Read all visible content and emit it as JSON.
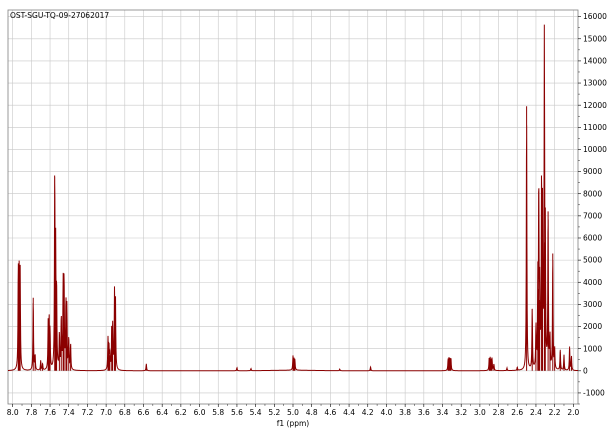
{
  "chart_data": {
    "type": "line",
    "title": "OST-SGU-TQ-09-27062017",
    "xlabel": "f1 (ppm)",
    "ylabel": "",
    "xlim": [
      8.05,
      1.95
    ],
    "ylim": [
      -1500,
      16300
    ],
    "x_reversed": true,
    "grid": true,
    "x_ticks": [
      8.0,
      7.8,
      7.6,
      7.4,
      7.2,
      7.0,
      6.8,
      6.6,
      6.4,
      6.2,
      6.0,
      5.8,
      5.6,
      5.4,
      5.2,
      5.0,
      4.8,
      4.6,
      4.4,
      4.2,
      4.0,
      3.8,
      3.6,
      3.4,
      3.2,
      3.0,
      2.8,
      2.6,
      2.4,
      2.2,
      2.0
    ],
    "y_ticks": [
      -1000,
      0,
      1000,
      2000,
      3000,
      4000,
      5000,
      6000,
      7000,
      8000,
      9000,
      10000,
      11000,
      12000,
      13000,
      14000,
      15000,
      16000
    ],
    "baseline": 0,
    "peaks": [
      {
        "x": 7.94,
        "y": 4450
      },
      {
        "x": 7.93,
        "y": 4200
      },
      {
        "x": 7.92,
        "y": 4250
      },
      {
        "x": 7.78,
        "y": 3300
      },
      {
        "x": 7.76,
        "y": 700
      },
      {
        "x": 7.7,
        "y": 450
      },
      {
        "x": 7.68,
        "y": 300
      },
      {
        "x": 7.62,
        "y": 2050
      },
      {
        "x": 7.61,
        "y": 2200
      },
      {
        "x": 7.6,
        "y": 1700
      },
      {
        "x": 7.55,
        "y": 8750
      },
      {
        "x": 7.54,
        "y": 5100
      },
      {
        "x": 7.53,
        "y": 3500
      },
      {
        "x": 7.5,
        "y": 1600
      },
      {
        "x": 7.48,
        "y": 2400
      },
      {
        "x": 7.46,
        "y": 3850
      },
      {
        "x": 7.45,
        "y": 4050
      },
      {
        "x": 7.43,
        "y": 3000
      },
      {
        "x": 7.42,
        "y": 2700
      },
      {
        "x": 7.4,
        "y": 1450
      },
      {
        "x": 7.38,
        "y": 1200
      },
      {
        "x": 6.98,
        "y": 1400
      },
      {
        "x": 6.97,
        "y": 1100
      },
      {
        "x": 6.96,
        "y": 700
      },
      {
        "x": 6.94,
        "y": 1850
      },
      {
        "x": 6.93,
        "y": 1900
      },
      {
        "x": 6.91,
        "y": 3450
      },
      {
        "x": 6.9,
        "y": 3100
      },
      {
        "x": 6.57,
        "y": 320
      },
      {
        "x": 5.6,
        "y": 150
      },
      {
        "x": 5.45,
        "y": 100
      },
      {
        "x": 5.0,
        "y": 600
      },
      {
        "x": 4.99,
        "y": 500
      },
      {
        "x": 4.98,
        "y": 450
      },
      {
        "x": 4.5,
        "y": 80
      },
      {
        "x": 4.17,
        "y": 180
      },
      {
        "x": 3.34,
        "y": 500
      },
      {
        "x": 3.33,
        "y": 520
      },
      {
        "x": 3.32,
        "y": 450
      },
      {
        "x": 3.31,
        "y": 550
      },
      {
        "x": 2.9,
        "y": 550
      },
      {
        "x": 2.89,
        "y": 500
      },
      {
        "x": 2.88,
        "y": 450
      },
      {
        "x": 2.87,
        "y": 520
      },
      {
        "x": 2.85,
        "y": 300
      },
      {
        "x": 2.71,
        "y": 120
      },
      {
        "x": 2.6,
        "y": 150
      },
      {
        "x": 2.5,
        "y": 11950
      },
      {
        "x": 2.44,
        "y": 2800
      },
      {
        "x": 2.4,
        "y": 1900
      },
      {
        "x": 2.38,
        "y": 3700
      },
      {
        "x": 2.37,
        "y": 8200
      },
      {
        "x": 2.36,
        "y": 3200
      },
      {
        "x": 2.34,
        "y": 8250
      },
      {
        "x": 2.33,
        "y": 6700
      },
      {
        "x": 2.31,
        "y": 14850
      },
      {
        "x": 2.3,
        "y": 5800
      },
      {
        "x": 2.27,
        "y": 7200
      },
      {
        "x": 2.25,
        "y": 1400
      },
      {
        "x": 2.22,
        "y": 5300
      },
      {
        "x": 2.2,
        "y": 900
      },
      {
        "x": 2.14,
        "y": 950
      },
      {
        "x": 2.1,
        "y": 700
      },
      {
        "x": 2.04,
        "y": 1100
      },
      {
        "x": 2.02,
        "y": 650
      }
    ],
    "series": [
      {
        "color": "#8b0000"
      }
    ]
  }
}
